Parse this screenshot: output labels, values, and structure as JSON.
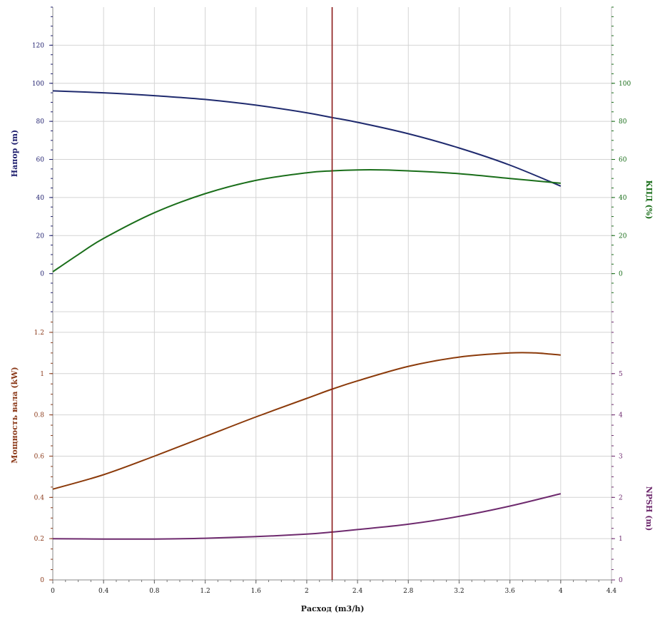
{
  "chart_data": {
    "type": "line",
    "x_axis": {
      "label": "Расход (m3/h)",
      "range": [
        0,
        4.4
      ],
      "ticks": [
        "0",
        "0.4",
        "0.8",
        "1.2",
        "1.6",
        "2",
        "2.4",
        "2.8",
        "3.2",
        "3.6",
        "4",
        "4.4"
      ],
      "tick_values": [
        0,
        0.4,
        0.8,
        1.2,
        1.6,
        2,
        2.4,
        2.8,
        3.2,
        3.6,
        4,
        4.4
      ]
    },
    "operating_point": {
      "x": 2.2,
      "color": "#8b1a1a"
    },
    "panels": [
      {
        "name": "upper",
        "left_axis": {
          "label": "Напор (m)",
          "color": "#1f1f6e",
          "range": [
            -20,
            140
          ],
          "ticks": [
            "0",
            "20",
            "40",
            "60",
            "80",
            "100",
            "120"
          ],
          "tick_values": [
            0,
            20,
            40,
            60,
            80,
            100,
            120
          ]
        },
        "right_axis": {
          "label": "КПД (%)",
          "color": "#1a6e1a",
          "range": [
            -20,
            140
          ],
          "ticks": [
            "0",
            "20",
            "40",
            "60",
            "80",
            "100"
          ],
          "tick_values": [
            0,
            20,
            40,
            60,
            80,
            100
          ]
        },
        "series": [
          {
            "axis": "left",
            "color": "#1f2a6e",
            "points": [
              [
                0,
                96
              ],
              [
                0.4,
                95
              ],
              [
                0.8,
                93.5
              ],
              [
                1.2,
                91.5
              ],
              [
                1.6,
                88.5
              ],
              [
                2.0,
                84.5
              ],
              [
                2.2,
                82
              ],
              [
                2.4,
                79.5
              ],
              [
                2.8,
                73.5
              ],
              [
                3.2,
                66
              ],
              [
                3.6,
                57
              ],
              [
                4.0,
                46
              ]
            ]
          },
          {
            "axis": "right",
            "color": "#1a6e1a",
            "points": [
              [
                0,
                1
              ],
              [
                0.2,
                10
              ],
              [
                0.4,
                18.5
              ],
              [
                0.8,
                32
              ],
              [
                1.2,
                42
              ],
              [
                1.6,
                49
              ],
              [
                2.0,
                53
              ],
              [
                2.2,
                54
              ],
              [
                2.4,
                54.5
              ],
              [
                2.6,
                54.5
              ],
              [
                2.8,
                54
              ],
              [
                3.2,
                52.5
              ],
              [
                3.6,
                50
              ],
              [
                4.0,
                47.5
              ]
            ]
          }
        ]
      },
      {
        "name": "lower",
        "left_axis": {
          "label": "Мощность вала (kW)",
          "color": "#8b3a1a",
          "range": [
            0,
            1.3
          ],
          "ticks": [
            "0",
            "0.2",
            "0.4",
            "0.6",
            "0.8",
            "1",
            "1.2"
          ],
          "tick_values": [
            0,
            0.2,
            0.4,
            0.6,
            0.8,
            1,
            1.2
          ]
        },
        "right_axis": {
          "label": "NPSH (m)",
          "color": "#6e2a6e",
          "range": [
            0,
            6.5
          ],
          "ticks": [
            "0",
            "1",
            "2",
            "3",
            "4",
            "5"
          ],
          "tick_values": [
            0,
            1,
            2,
            3,
            4,
            5
          ]
        },
        "series": [
          {
            "axis": "left",
            "color": "#8b3a0a",
            "points": [
              [
                0,
                0.44
              ],
              [
                0.4,
                0.51
              ],
              [
                0.8,
                0.6
              ],
              [
                1.2,
                0.695
              ],
              [
                1.6,
                0.79
              ],
              [
                2.0,
                0.88
              ],
              [
                2.2,
                0.925
              ],
              [
                2.4,
                0.965
              ],
              [
                2.8,
                1.035
              ],
              [
                3.2,
                1.08
              ],
              [
                3.6,
                1.1
              ],
              [
                3.8,
                1.1
              ],
              [
                4.0,
                1.09
              ]
            ]
          },
          {
            "axis": "right",
            "color": "#6e2a6e",
            "points": [
              [
                0,
                1.0
              ],
              [
                0.4,
                0.99
              ],
              [
                0.8,
                0.99
              ],
              [
                1.2,
                1.01
              ],
              [
                1.6,
                1.05
              ],
              [
                2.0,
                1.11
              ],
              [
                2.2,
                1.16
              ],
              [
                2.4,
                1.22
              ],
              [
                2.8,
                1.35
              ],
              [
                3.2,
                1.54
              ],
              [
                3.6,
                1.79
              ],
              [
                4.0,
                2.09
              ]
            ]
          }
        ]
      }
    ]
  }
}
